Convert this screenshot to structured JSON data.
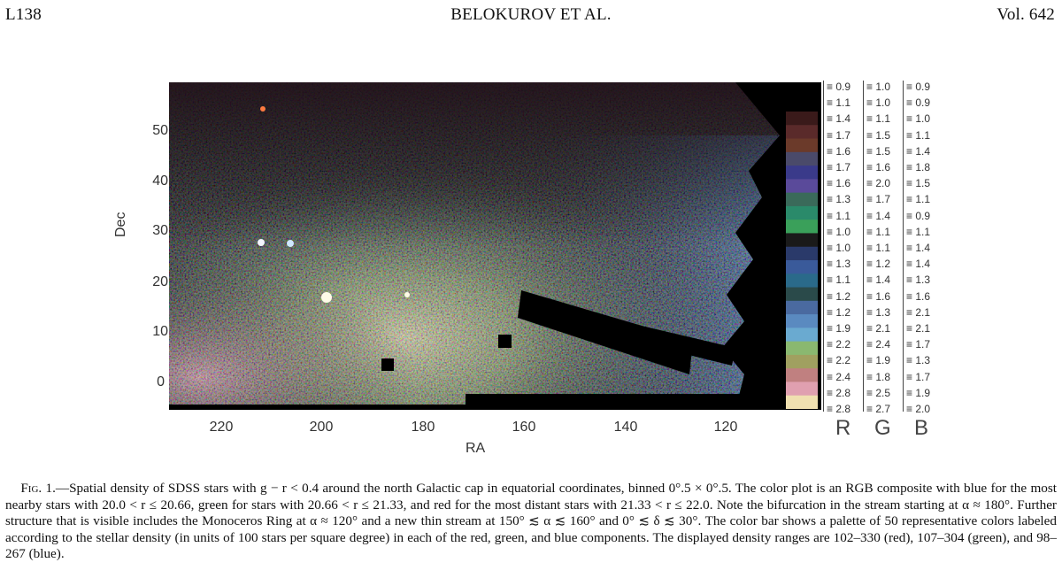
{
  "header": {
    "left": "L138",
    "center": "BELOKUROV ET AL.",
    "right": "Vol. 642"
  },
  "figure": {
    "xlabel": "RA",
    "ylabel": "Dec",
    "x_ticks": [
      "220",
      "200",
      "180",
      "160",
      "140",
      "120"
    ],
    "y_ticks": [
      "50",
      "40",
      "30",
      "20",
      "10",
      "0"
    ],
    "colorbar": {
      "components": [
        "R",
        "G",
        "B"
      ],
      "R": [
        "0.9",
        "1.1",
        "1.4",
        "1.7",
        "1.6",
        "1.7",
        "1.6",
        "1.3",
        "1.1",
        "1.0",
        "1.0",
        "1.3",
        "1.1",
        "1.2",
        "1.2",
        "1.9",
        "2.2",
        "2.2",
        "2.4",
        "2.8",
        "2.8"
      ],
      "G": [
        "1.0",
        "1.0",
        "1.1",
        "1.5",
        "1.5",
        "1.6",
        "2.0",
        "1.7",
        "1.4",
        "1.1",
        "1.1",
        "1.2",
        "1.4",
        "1.6",
        "1.3",
        "2.1",
        "2.4",
        "1.9",
        "1.8",
        "2.5",
        "2.7"
      ],
      "B": [
        "0.9",
        "0.9",
        "1.0",
        "1.1",
        "1.4",
        "1.8",
        "1.5",
        "1.1",
        "0.9",
        "1.1",
        "1.4",
        "1.4",
        "1.3",
        "1.6",
        "2.1",
        "2.1",
        "1.7",
        "1.3",
        "1.7",
        "1.9",
        "2.0"
      ]
    }
  },
  "caption": {
    "label": "Fig. 1.",
    "text": "—Spatial density of SDSS stars with g − r < 0.4 around the north Galactic cap in equatorial coordinates, binned 0°.5 × 0°.5. The color plot is an RGB composite with blue for the most nearby stars with 20.0 < r ≤ 20.66, green for stars with 20.66 < r ≤ 21.33, and red for the most distant stars with 21.33 < r ≤ 22.0. Note the bifurcation in the stream starting at α ≈ 180°. Further structure that is visible includes the Monoceros Ring at α ≈ 120° and a new thin stream at 150° ≲ α ≲ 160° and 0° ≲ δ ≲ 30°. The color bar shows a palette of 50 representative colors labeled according to the stellar density (in units of 100 stars per square degree) in each of the red, green, and blue components. The displayed density ranges are 102–330 (red), 107–304 (green), and 98–267 (blue)."
  },
  "colors": {
    "background": "#ffffff",
    "plot_bg": "#000000",
    "text": "#111111"
  }
}
